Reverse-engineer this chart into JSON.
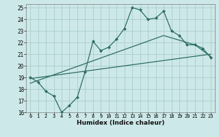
{
  "xlabel": "Humidex (Indice chaleur)",
  "bg_color": "#cde8e8",
  "grid_color": "#a8cccc",
  "line_color": "#2a6b60",
  "xlim": [
    -0.5,
    23.5
  ],
  "ylim": [
    16,
    25.3
  ],
  "xticks": [
    0,
    1,
    2,
    3,
    4,
    5,
    6,
    7,
    8,
    9,
    10,
    11,
    12,
    13,
    14,
    15,
    16,
    17,
    18,
    19,
    20,
    21,
    22,
    23
  ],
  "yticks": [
    16,
    17,
    18,
    19,
    20,
    21,
    22,
    23,
    24,
    25
  ],
  "line1_x": [
    0,
    1,
    2,
    3,
    4,
    5,
    6,
    7,
    8,
    9,
    10,
    11,
    12,
    13,
    14,
    15,
    16,
    17,
    18,
    19,
    20,
    21,
    22,
    23
  ],
  "line1_y": [
    19.0,
    18.6,
    17.8,
    17.4,
    16.0,
    16.6,
    17.3,
    19.5,
    22.1,
    21.3,
    21.6,
    22.3,
    23.2,
    25.0,
    24.8,
    24.0,
    24.1,
    24.7,
    23.0,
    22.6,
    21.8,
    21.8,
    21.5,
    20.7
  ],
  "line2_x": [
    0,
    23
  ],
  "line2_y": [
    18.9,
    21.0
  ],
  "line3_x": [
    0,
    17,
    21,
    23
  ],
  "line3_y": [
    18.5,
    22.6,
    21.8,
    20.8
  ]
}
